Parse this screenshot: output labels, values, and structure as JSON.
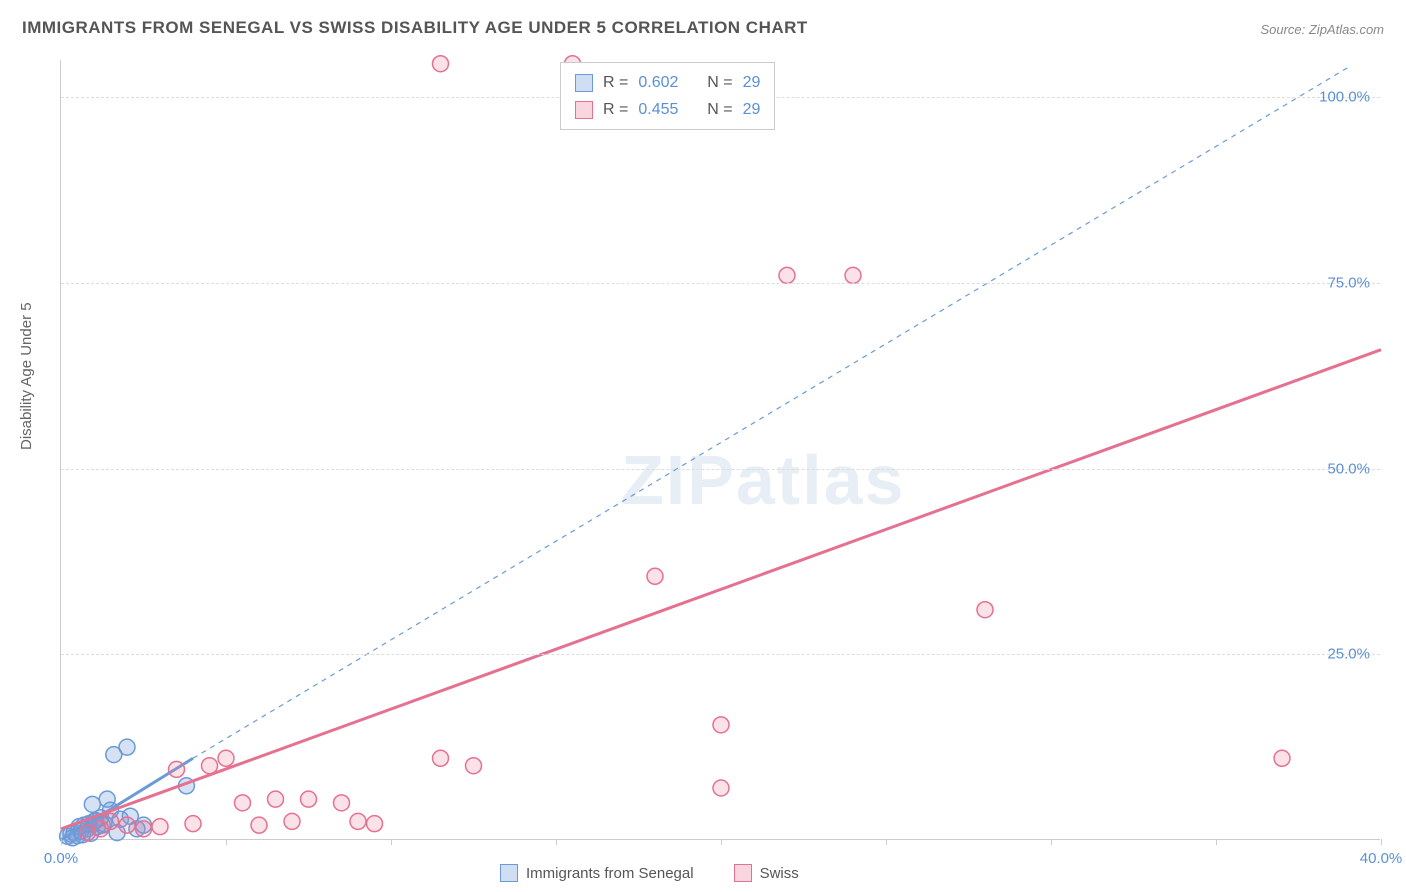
{
  "title": "IMMIGRANTS FROM SENEGAL VS SWISS DISABILITY AGE UNDER 5 CORRELATION CHART",
  "source": "Source: ZipAtlas.com",
  "watermark": "ZIPatlas",
  "yaxis_title": "Disability Age Under 5",
  "chart": {
    "type": "scatter",
    "xlim": [
      0,
      40
    ],
    "ylim": [
      0,
      105
    ],
    "xticks": [
      0,
      5,
      10,
      15,
      20,
      25,
      30,
      35,
      40
    ],
    "xtick_labels": [
      "0.0%",
      "",
      "",
      "",
      "",
      "",
      "",
      "",
      "40.0%"
    ],
    "yticks": [
      25,
      50,
      75,
      100
    ],
    "ytick_labels": [
      "25.0%",
      "50.0%",
      "75.0%",
      "100.0%"
    ],
    "background_color": "#ffffff",
    "grid_color": "#dddddd",
    "axis_color": "#cccccc",
    "tick_label_color": "#5b8fd6",
    "marker_radius": 8,
    "marker_stroke_width": 1.5,
    "series": [
      {
        "name": "Immigrants from Senegal",
        "color_fill": "rgba(120,160,220,0.30)",
        "color_stroke": "#6a9bd8",
        "R": "0.602",
        "N": "29",
        "trend": {
          "x1": 0,
          "y1": 0,
          "x2": 4,
          "y2": 11,
          "dash": "none",
          "width": 3
        },
        "trend_ext": {
          "x1": 4,
          "y1": 11,
          "x2": 39,
          "y2": 104,
          "dash": "5,5",
          "width": 1.2
        },
        "points": [
          [
            0.2,
            0.5
          ],
          [
            0.3,
            0.8
          ],
          [
            0.4,
            1.0
          ],
          [
            0.5,
            0.6
          ],
          [
            0.6,
            1.2
          ],
          [
            0.7,
            2.0
          ],
          [
            0.8,
            1.5
          ],
          [
            0.9,
            0.9
          ],
          [
            1.0,
            2.5
          ],
          [
            1.1,
            1.8
          ],
          [
            1.2,
            3.0
          ],
          [
            1.3,
            2.2
          ],
          [
            1.5,
            4.0
          ],
          [
            1.6,
            11.5
          ],
          [
            1.7,
            1.0
          ],
          [
            1.8,
            2.8
          ],
          [
            2.0,
            12.5
          ],
          [
            2.1,
            3.2
          ],
          [
            2.3,
            1.5
          ],
          [
            2.5,
            2.0
          ],
          [
            1.4,
            5.5
          ],
          [
            0.85,
            2.2
          ],
          [
            0.55,
            1.8
          ],
          [
            0.35,
            0.3
          ],
          [
            0.95,
            4.8
          ],
          [
            1.25,
            2.0
          ],
          [
            1.05,
            2.6
          ],
          [
            0.65,
            0.7
          ],
          [
            3.8,
            7.3
          ]
        ]
      },
      {
        "name": "Swiss",
        "color_fill": "rgba(235,120,150,0.22)",
        "color_stroke": "#e67090",
        "R": "0.455",
        "N": "29",
        "trend": {
          "x1": 0,
          "y1": 1.5,
          "x2": 40,
          "y2": 66,
          "dash": "none",
          "width": 3
        },
        "points": [
          [
            0.8,
            1.0
          ],
          [
            1.2,
            1.5
          ],
          [
            1.5,
            2.5
          ],
          [
            2.0,
            2.0
          ],
          [
            2.5,
            1.5
          ],
          [
            3.0,
            1.8
          ],
          [
            3.5,
            9.5
          ],
          [
            4.0,
            2.2
          ],
          [
            4.5,
            10.0
          ],
          [
            5.0,
            11.0
          ],
          [
            5.5,
            5.0
          ],
          [
            6.0,
            2.0
          ],
          [
            6.5,
            5.5
          ],
          [
            7.0,
            2.5
          ],
          [
            7.5,
            5.5
          ],
          [
            8.5,
            5.0
          ],
          [
            9.0,
            2.5
          ],
          [
            9.5,
            2.2
          ],
          [
            11.5,
            11.0
          ],
          [
            11.5,
            104.5
          ],
          [
            12.5,
            10.0
          ],
          [
            15.5,
            104.5
          ],
          [
            18.0,
            35.5
          ],
          [
            20.0,
            7.0
          ],
          [
            20.0,
            15.5
          ],
          [
            22.0,
            76.0
          ],
          [
            24.0,
            76.0
          ],
          [
            28.0,
            31.0
          ],
          [
            37.0,
            11.0
          ]
        ]
      }
    ]
  },
  "legend_top": {
    "rows": [
      {
        "swatch": "blue",
        "r_label": "R =",
        "r_val": "0.602",
        "n_label": "N =",
        "n_val": "29"
      },
      {
        "swatch": "pink",
        "r_label": "R =",
        "r_val": "0.455",
        "n_label": "N =",
        "n_val": "29"
      }
    ]
  },
  "legend_bottom": {
    "items": [
      {
        "swatch": "blue",
        "label": "Immigrants from Senegal"
      },
      {
        "swatch": "pink",
        "label": "Swiss"
      }
    ]
  }
}
